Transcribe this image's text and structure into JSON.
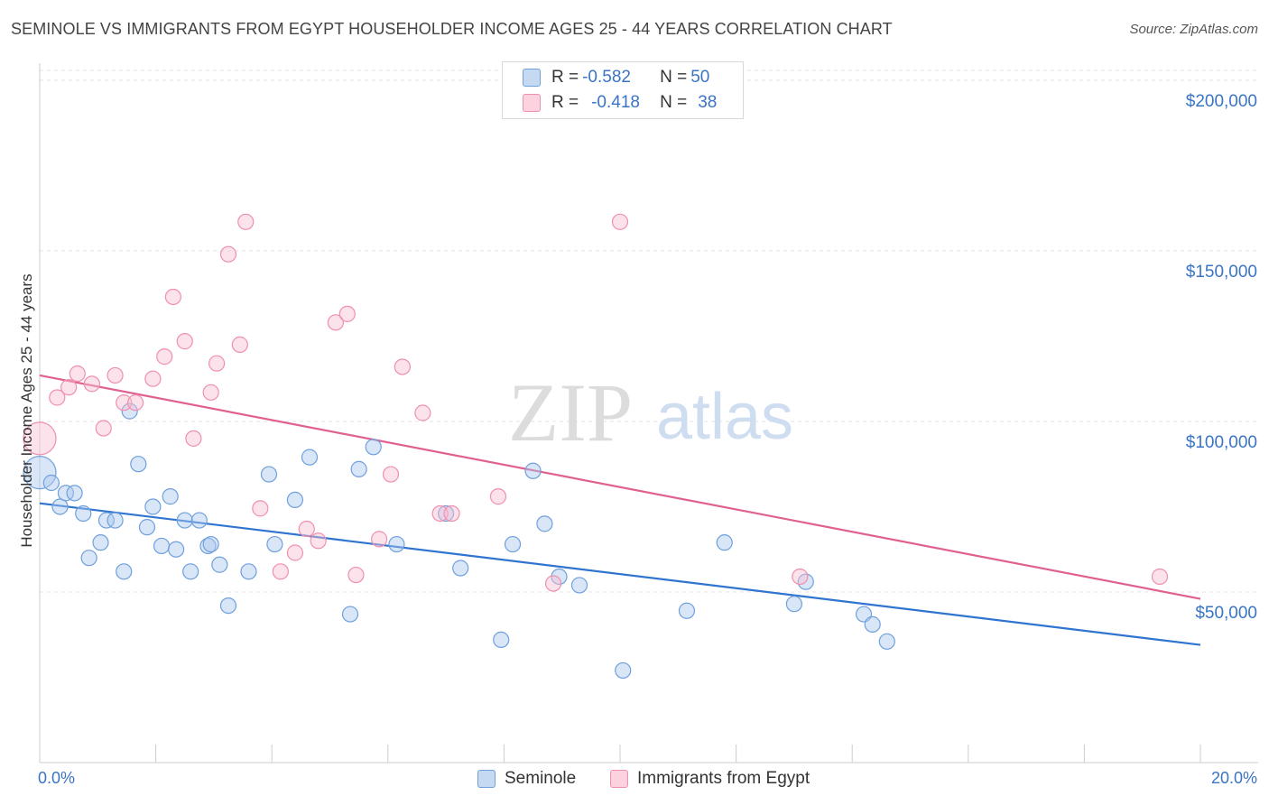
{
  "header": {
    "title": "SEMINOLE VS IMMIGRANTS FROM EGYPT HOUSEHOLDER INCOME AGES 25 - 44 YEARS CORRELATION CHART",
    "source": "Source: ZipAtlas.com"
  },
  "watermark": {
    "zip": "ZIP",
    "atlas": "atlas"
  },
  "legend": {
    "rows": [
      {
        "r_label": "R = ",
        "r_value": "-0.582",
        "n_label": "N = ",
        "n_value": "50"
      },
      {
        "r_label": "R = ",
        "r_value": "-0.418",
        "n_label": "N = ",
        "n_value": "38"
      }
    ]
  },
  "chart_data": {
    "type": "scatter",
    "title": "SEMINOLE VS IMMIGRANTS FROM EGYPT HOUSEHOLDER INCOME AGES 25 - 44 YEARS CORRELATION CHART",
    "xlabel": "",
    "ylabel": "Householder Income Ages 25 - 44 years",
    "xlim": [
      0,
      20
    ],
    "ylim": [
      0,
      205000
    ],
    "x_tick_labels": [
      "0.0%",
      "20.0%"
    ],
    "y_ticks": [
      50000,
      100000,
      150000,
      200000
    ],
    "y_tick_labels": [
      "$50,000",
      "$100,000",
      "$150,000",
      "$200,000"
    ],
    "grid": true,
    "legend_position": "bottom-center",
    "colors": {
      "seminole": "#5b9bd5",
      "egypt": "#f08fb0",
      "seminole_line": "#2f74d0",
      "egypt_line": "#e06090",
      "axis_text": "#3a74c4"
    },
    "series": [
      {
        "name": "Seminole",
        "key": "seminole",
        "trend": {
          "x": [
            0,
            20
          ],
          "y": [
            76000,
            34500
          ]
        },
        "points": [
          {
            "x": 0.0,
            "y": 85000,
            "big": true
          },
          {
            "x": 0.2,
            "y": 82000
          },
          {
            "x": 0.35,
            "y": 75000
          },
          {
            "x": 0.45,
            "y": 79000
          },
          {
            "x": 0.6,
            "y": 79000
          },
          {
            "x": 0.75,
            "y": 73000
          },
          {
            "x": 0.85,
            "y": 60000
          },
          {
            "x": 1.05,
            "y": 64500
          },
          {
            "x": 1.15,
            "y": 71000
          },
          {
            "x": 1.3,
            "y": 71000
          },
          {
            "x": 1.45,
            "y": 56000
          },
          {
            "x": 1.55,
            "y": 103000
          },
          {
            "x": 1.7,
            "y": 87500
          },
          {
            "x": 1.85,
            "y": 69000
          },
          {
            "x": 1.95,
            "y": 75000
          },
          {
            "x": 2.1,
            "y": 63500
          },
          {
            "x": 2.25,
            "y": 78000
          },
          {
            "x": 2.35,
            "y": 62500
          },
          {
            "x": 2.5,
            "y": 71000
          },
          {
            "x": 2.6,
            "y": 56000
          },
          {
            "x": 2.75,
            "y": 71000
          },
          {
            "x": 2.9,
            "y": 63500
          },
          {
            "x": 2.95,
            "y": 64000
          },
          {
            "x": 3.1,
            "y": 58000
          },
          {
            "x": 3.25,
            "y": 46000
          },
          {
            "x": 3.6,
            "y": 56000
          },
          {
            "x": 3.95,
            "y": 84500
          },
          {
            "x": 4.05,
            "y": 64000
          },
          {
            "x": 4.4,
            "y": 77000
          },
          {
            "x": 4.65,
            "y": 89500
          },
          {
            "x": 5.35,
            "y": 43500
          },
          {
            "x": 5.5,
            "y": 86000
          },
          {
            "x": 5.75,
            "y": 92500
          },
          {
            "x": 6.15,
            "y": 64000
          },
          {
            "x": 7.0,
            "y": 73000
          },
          {
            "x": 7.25,
            "y": 57000
          },
          {
            "x": 7.95,
            "y": 36000
          },
          {
            "x": 8.15,
            "y": 64000
          },
          {
            "x": 8.5,
            "y": 85500
          },
          {
            "x": 8.7,
            "y": 70000
          },
          {
            "x": 8.95,
            "y": 54500
          },
          {
            "x": 9.3,
            "y": 52000
          },
          {
            "x": 10.05,
            "y": 27000
          },
          {
            "x": 11.15,
            "y": 44500
          },
          {
            "x": 11.8,
            "y": 64500
          },
          {
            "x": 13.0,
            "y": 46500
          },
          {
            "x": 13.2,
            "y": 53000
          },
          {
            "x": 14.2,
            "y": 43500
          },
          {
            "x": 14.35,
            "y": 40500
          },
          {
            "x": 14.6,
            "y": 35500
          }
        ]
      },
      {
        "name": "Immigrants from Egypt",
        "key": "egypt",
        "trend": {
          "x": [
            0,
            20
          ],
          "y": [
            113500,
            48000
          ]
        },
        "points": [
          {
            "x": 0.0,
            "y": 95000,
            "big": true
          },
          {
            "x": 0.3,
            "y": 107000
          },
          {
            "x": 0.5,
            "y": 110000
          },
          {
            "x": 0.65,
            "y": 114000
          },
          {
            "x": 0.9,
            "y": 111000
          },
          {
            "x": 1.1,
            "y": 98000
          },
          {
            "x": 1.3,
            "y": 113500
          },
          {
            "x": 1.45,
            "y": 105500
          },
          {
            "x": 1.65,
            "y": 105500
          },
          {
            "x": 1.95,
            "y": 112500
          },
          {
            "x": 2.15,
            "y": 119000
          },
          {
            "x": 2.3,
            "y": 136500
          },
          {
            "x": 2.5,
            "y": 123500
          },
          {
            "x": 2.65,
            "y": 95000
          },
          {
            "x": 2.95,
            "y": 108500
          },
          {
            "x": 3.05,
            "y": 117000
          },
          {
            "x": 3.25,
            "y": 149000
          },
          {
            "x": 3.45,
            "y": 122500
          },
          {
            "x": 3.55,
            "y": 158500
          },
          {
            "x": 3.8,
            "y": 74500
          },
          {
            "x": 4.15,
            "y": 56000
          },
          {
            "x": 4.4,
            "y": 61500
          },
          {
            "x": 4.6,
            "y": 68500
          },
          {
            "x": 4.8,
            "y": 65000
          },
          {
            "x": 5.1,
            "y": 129000
          },
          {
            "x": 5.3,
            "y": 131500
          },
          {
            "x": 5.45,
            "y": 55000
          },
          {
            "x": 5.85,
            "y": 65500
          },
          {
            "x": 6.05,
            "y": 84500
          },
          {
            "x": 6.25,
            "y": 116000
          },
          {
            "x": 6.6,
            "y": 102500
          },
          {
            "x": 6.9,
            "y": 73000
          },
          {
            "x": 7.1,
            "y": 73000
          },
          {
            "x": 7.9,
            "y": 78000
          },
          {
            "x": 8.85,
            "y": 52500
          },
          {
            "x": 10.0,
            "y": 158500
          },
          {
            "x": 13.1,
            "y": 54500
          },
          {
            "x": 19.3,
            "y": 54500
          }
        ]
      }
    ]
  },
  "bottom_legend": {
    "items": [
      "Seminole",
      "Immigrants from Egypt"
    ]
  }
}
